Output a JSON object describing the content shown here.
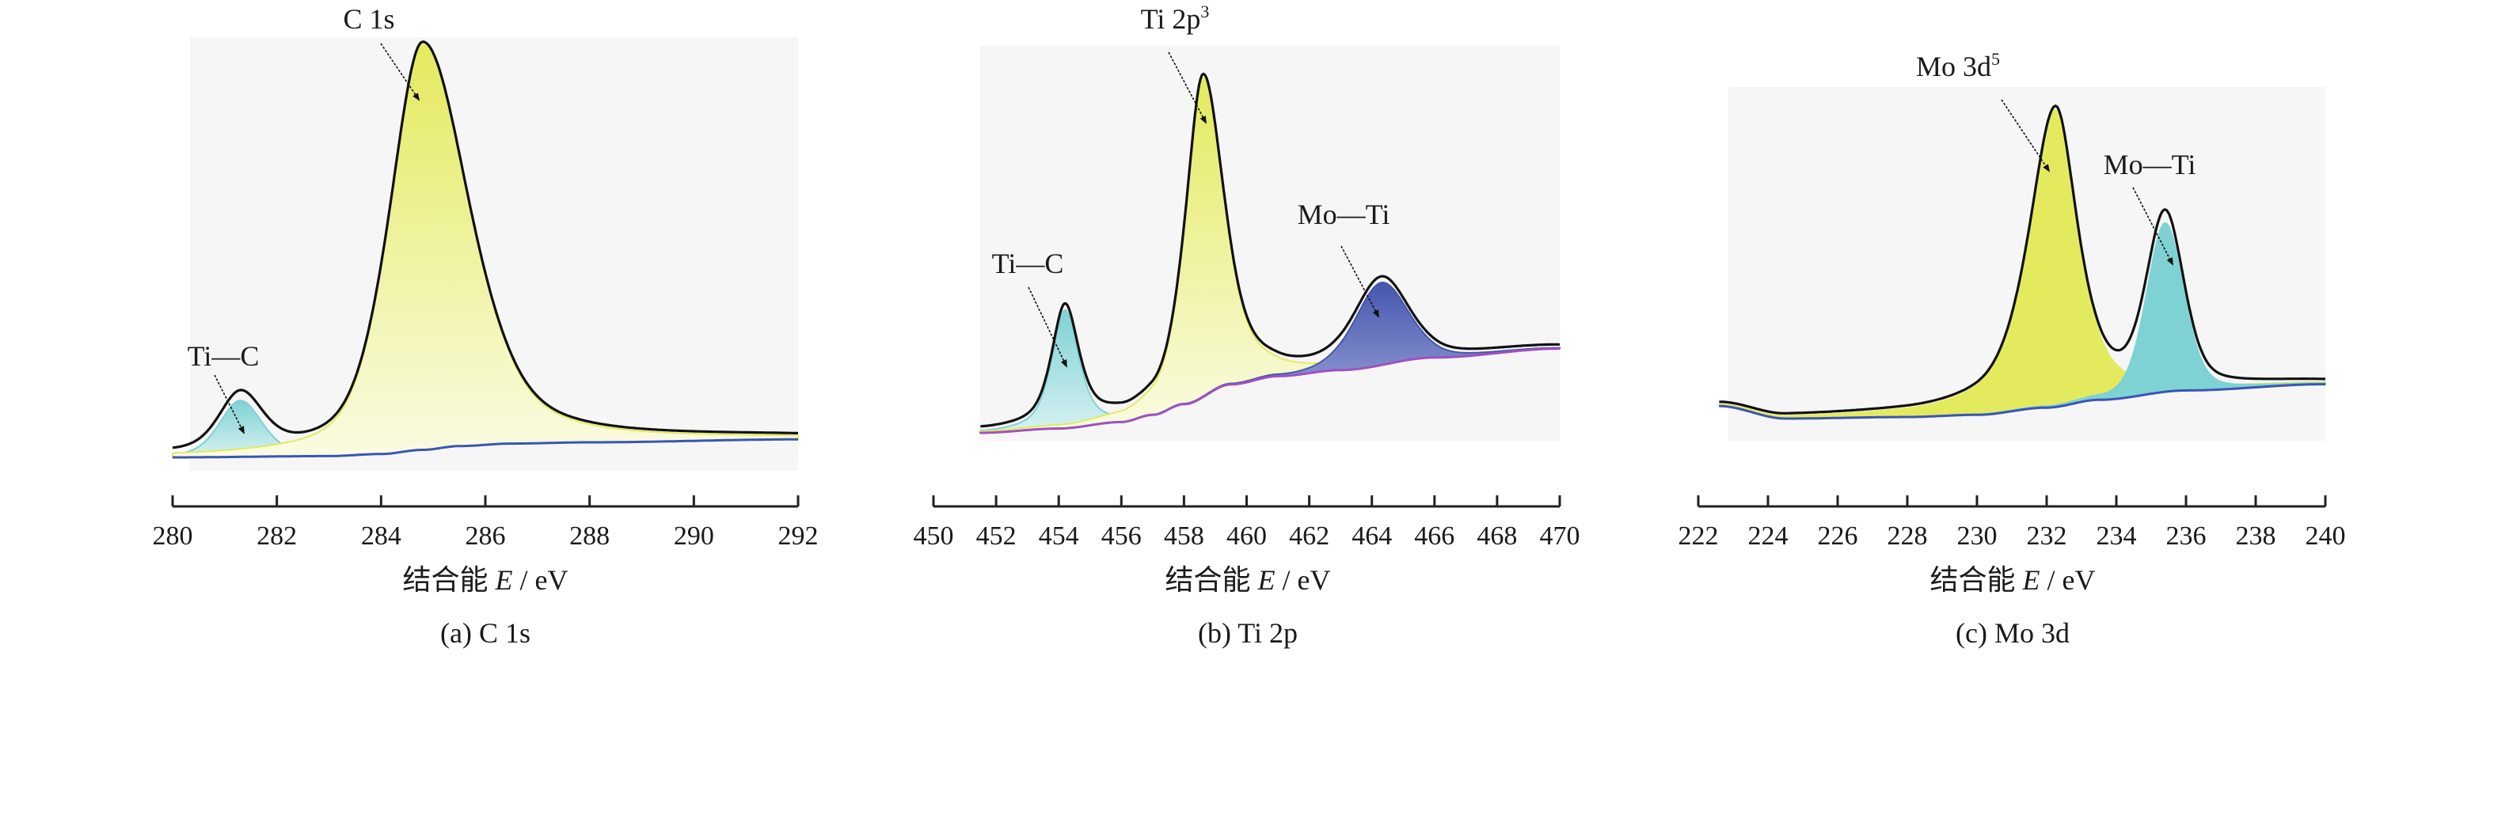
{
  "colors": {
    "yellow": "#e4ea5e",
    "yellow_light": "#fafbe2",
    "cyan": "#7fd2d4",
    "cyan_light": "#d7f1f1",
    "blue": "#4656ae",
    "blue_light": "#a9b1de",
    "envelope": "#111111",
    "background_blue": "#3a55b5",
    "background_purple": "#a050c0",
    "plot_bg": "#f6f6f6",
    "axis": "#222222"
  },
  "chart_data": [
    {
      "type": "area",
      "title": "C 1s",
      "caption": "(a) C 1s",
      "xlabel": {
        "prefix": "结合能 ",
        "var": "E",
        "suffix": " / eV"
      },
      "ylabel": "",
      "xlim": [
        280,
        292
      ],
      "xticks": [
        "280",
        "282",
        "284",
        "286",
        "288",
        "290",
        "292"
      ],
      "intensity_units": "relative (peak max = 100)",
      "curve_range": [
        280,
        292
      ],
      "background": {
        "name": "Shirley background",
        "color": "background_blue",
        "points": [
          [
            280,
            0
          ],
          [
            283,
            0.3
          ],
          [
            284,
            0.8
          ],
          [
            284.8,
            1.8
          ],
          [
            285.5,
            2.7
          ],
          [
            286.5,
            3.3
          ],
          [
            288,
            3.6
          ],
          [
            292,
            4.3
          ]
        ]
      },
      "components": [
        {
          "name": "Ti—C",
          "center": 281.3,
          "height": 13.5,
          "fwhm": 0.95,
          "fwhm_right": 1.0,
          "eta": 0.4,
          "fill": "cyan",
          "fill_light": "cyan_light"
        },
        {
          "name": "C 1s",
          "center": 284.8,
          "height": 97,
          "fwhm": 1.5,
          "fwhm_right": 2.1,
          "eta": 0.45,
          "fill": "yellow",
          "fill_light": "yellow_light"
        }
      ],
      "annotations": [
        {
          "text": "C 1s",
          "sup": "",
          "target_ev": 284.8
        },
        {
          "text": "Ti—C",
          "sup": "",
          "target_ev": 281.3
        }
      ]
    },
    {
      "type": "area",
      "title": "Ti 2p",
      "caption": "(b) Ti 2p",
      "xlabel": {
        "prefix": "结合能 ",
        "var": "E",
        "suffix": " / eV"
      },
      "ylabel": "",
      "xlim": [
        450,
        470
      ],
      "xticks": [
        "450",
        "452",
        "454",
        "456",
        "458",
        "460",
        "462",
        "464",
        "466",
        "468",
        "470"
      ],
      "intensity_units": "relative (peak max = 100)",
      "curve_range": [
        451.5,
        470
      ],
      "background": {
        "name": "Shirley background",
        "color": "background_purple",
        "points": [
          [
            451.5,
            0
          ],
          [
            454,
            1.2
          ],
          [
            456,
            3
          ],
          [
            457,
            5
          ],
          [
            458,
            8
          ],
          [
            459.5,
            13.5
          ],
          [
            461,
            15.8
          ],
          [
            463,
            17.5
          ],
          [
            466,
            21
          ],
          [
            470,
            23.5
          ]
        ]
      },
      "components": [
        {
          "name": "Ti—C",
          "center": 454.2,
          "height": 33,
          "fwhm": 1.0,
          "fwhm_right": 1.05,
          "eta": 0.6,
          "fill": "cyan",
          "fill_light": "cyan_light"
        },
        {
          "name": "Ti 2p3",
          "center": 458.6,
          "height": 89,
          "fwhm": 1.3,
          "fwhm_right": 1.6,
          "eta": 0.6,
          "fill": "yellow",
          "fill_light": "yellow_light"
        },
        {
          "name": "Mo—Ti",
          "center": 464.3,
          "height": 23,
          "fwhm": 2.0,
          "fwhm_right": 2.0,
          "eta": 0.3,
          "fill": "blue",
          "fill_light": "blue_light"
        }
      ],
      "annotations": [
        {
          "text": "Ti 2p",
          "sup": "3",
          "target_ev": 458.6
        },
        {
          "text": "Ti—C",
          "sup": "",
          "target_ev": 454.2
        },
        {
          "text": "Mo—Ti",
          "sup": "",
          "target_ev": 464.3
        }
      ]
    },
    {
      "type": "area",
      "title": "Mo 3d",
      "caption": "(c) Mo 3d",
      "xlabel": {
        "prefix": "结合能 ",
        "var": "E",
        "suffix": " / eV"
      },
      "ylabel": "",
      "xlim": [
        222,
        240
      ],
      "xticks": [
        "222",
        "224",
        "226",
        "228",
        "230",
        "232",
        "234",
        "236",
        "238",
        "240"
      ],
      "intensity_units": "relative (peak max = 100)",
      "curve_range": [
        222.6,
        240
      ],
      "background": {
        "name": "Shirley background",
        "color": "background_blue",
        "points": [
          [
            222.6,
            4
          ],
          [
            224.5,
            0
          ],
          [
            228,
            0.5
          ],
          [
            230,
            1.2
          ],
          [
            232,
            3.5
          ],
          [
            233.5,
            6
          ],
          [
            236,
            9
          ],
          [
            240,
            11
          ]
        ]
      },
      "components": [
        {
          "name": "Mo 3d5",
          "center": 232.25,
          "height": 95,
          "fwhm": 1.8,
          "fwhm_right": 1.5,
          "eta": 0.7,
          "fill": "yellow",
          "fill_light": "yellow"
        },
        {
          "name": "Mo—Ti",
          "center": 235.4,
          "height": 54,
          "fwhm": 1.25,
          "fwhm_right": 1.25,
          "eta": 0.3,
          "fill": "cyan",
          "fill_light": "cyan"
        }
      ],
      "annotations": [
        {
          "text": "Mo 3d",
          "sup": "5",
          "target_ev": 232.25
        },
        {
          "text": "Mo—Ti",
          "sup": "",
          "target_ev": 235.4
        }
      ]
    }
  ]
}
